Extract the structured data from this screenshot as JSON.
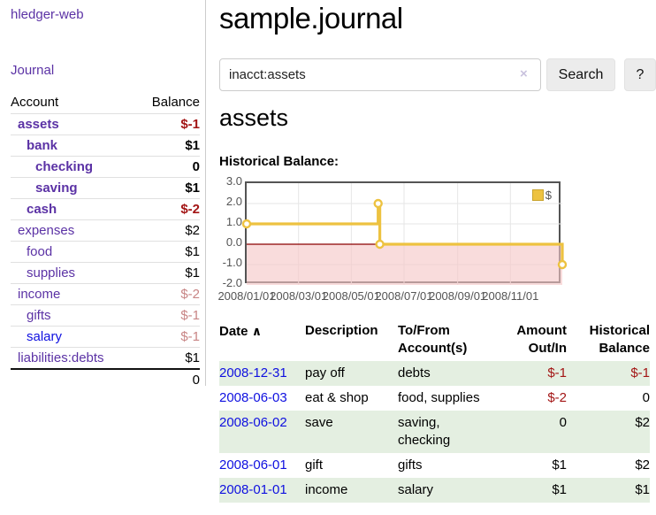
{
  "app": {
    "brand": "hledger-web",
    "nav": {
      "journal": "Journal"
    }
  },
  "colors": {
    "link_purple": "#5b32a5",
    "link_blue": "#0f10e0",
    "negative_strong": "#a31515",
    "negative_faint": "#c88585",
    "row_stripe_green": "#e4efe1",
    "chart_series_yellow": "#edc240",
    "chart_frame_gray": "#545454"
  },
  "sidebar": {
    "header": {
      "account": "Account",
      "balance": "Balance"
    },
    "accounts": [
      {
        "name": "assets",
        "balance": "$-1"
      },
      {
        "name": "bank",
        "balance": "$1"
      },
      {
        "name": "checking",
        "balance": "0"
      },
      {
        "name": "saving",
        "balance": "$1"
      },
      {
        "name": "cash",
        "balance": "$-2"
      },
      {
        "name": "expenses",
        "balance": "$2"
      },
      {
        "name": "food",
        "balance": "$1"
      },
      {
        "name": "supplies",
        "balance": "$1"
      },
      {
        "name": "income",
        "balance": "$-2"
      },
      {
        "name": "gifts",
        "balance": "$-1"
      },
      {
        "name": "salary",
        "balance": "$-1"
      },
      {
        "name": "liabilities:debts",
        "balance": "$1"
      }
    ],
    "total": "0"
  },
  "header": {
    "title": "sample.journal"
  },
  "search": {
    "value": "inacct:assets",
    "clear_icon": "×",
    "button_label": "Search",
    "help_label": "?"
  },
  "account_page": {
    "heading": "assets",
    "chart_label": "Historical Balance:"
  },
  "chart_data": {
    "type": "line",
    "step": true,
    "series": [
      {
        "name": "$",
        "color": "#edc240",
        "points": [
          [
            "2008-01-01",
            1
          ],
          [
            "2008-06-01",
            2
          ],
          [
            "2008-06-03",
            0
          ],
          [
            "2008-12-31",
            -1
          ]
        ]
      }
    ],
    "ylim": [
      -2,
      3
    ],
    "ytick_labels": [
      "3.0",
      "2.0",
      "1.0",
      "0.0",
      "-1.0",
      "-2.0"
    ],
    "yticks": [
      3,
      2,
      1,
      0,
      -1,
      -2
    ],
    "xticks": [
      {
        "date": "2008-01-01",
        "label": "2008/01/01"
      },
      {
        "date": "2008-03-01",
        "label": "2008/03/01"
      },
      {
        "date": "2008-05-01",
        "label": "2008/05/01"
      },
      {
        "date": "2008-07-01",
        "label": "2008/07/01"
      },
      {
        "date": "2008-09-01",
        "label": "2008/09/01"
      },
      {
        "date": "2008-11-01",
        "label": "2008/11/01"
      }
    ],
    "x_range": [
      "2008-01-01",
      "2008-12-31"
    ],
    "grid": true,
    "negative_region_color": "#f6c7c7",
    "zero_line_color": "#8b0000",
    "legend": {
      "label": "$",
      "position": "top-right"
    }
  },
  "register": {
    "sort_icon": "∧",
    "columns": [
      {
        "line1": "Date",
        "line2": ""
      },
      {
        "line1": "Description",
        "line2": ""
      },
      {
        "line1": "To/From",
        "line2": "Account(s)"
      },
      {
        "line1": "Amount",
        "line2": "Out/In"
      },
      {
        "line1": "Historical",
        "line2": "Balance"
      }
    ],
    "rows": [
      {
        "date": "2008-12-31",
        "description": "pay off",
        "tofrom": "debts",
        "amount": "$-1",
        "balance": "$-1"
      },
      {
        "date": "2008-06-03",
        "description": "eat & shop",
        "tofrom": "food, supplies",
        "amount": "$-2",
        "balance": "0"
      },
      {
        "date": "2008-06-02",
        "description": "save",
        "tofrom": "saving, checking",
        "amount": "0",
        "balance": "$2"
      },
      {
        "date": "2008-06-01",
        "description": "gift",
        "tofrom": "gifts",
        "amount": "$1",
        "balance": "$2"
      },
      {
        "date": "2008-01-01",
        "description": "income",
        "tofrom": "salary",
        "amount": "$1",
        "balance": "$1"
      }
    ]
  }
}
